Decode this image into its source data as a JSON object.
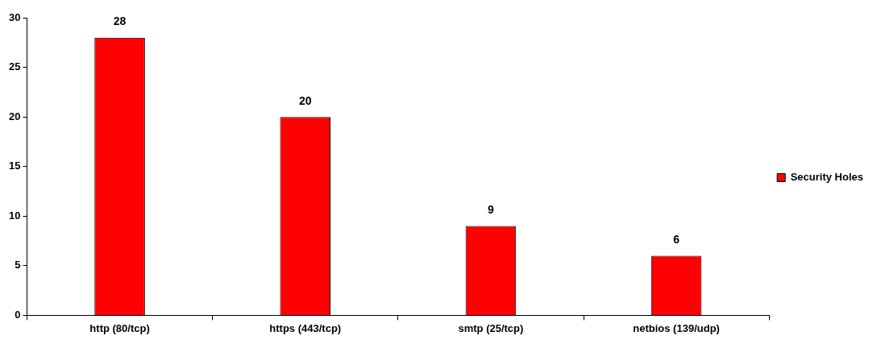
{
  "chart_data": {
    "type": "bar",
    "categories": [
      "http (80/tcp)",
      "https (443/tcp)",
      "smtp (25/tcp)",
      "netbios (139/udp)"
    ],
    "series": [
      {
        "name": "Security Holes",
        "color": "#ff0000",
        "values": [
          28,
          20,
          9,
          6
        ]
      }
    ],
    "ylim": [
      0,
      30
    ],
    "yticks": [
      0,
      5,
      10,
      15,
      20,
      25,
      30
    ],
    "grid": false,
    "legend": "right",
    "data_labels": true
  }
}
